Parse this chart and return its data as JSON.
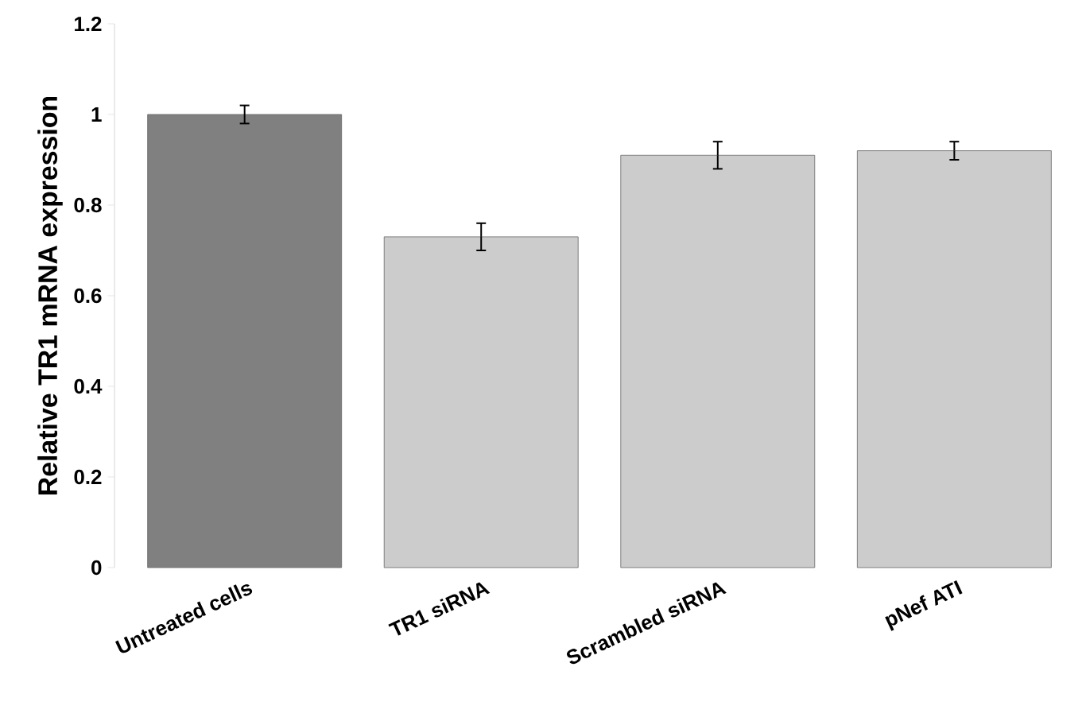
{
  "chart_data": {
    "type": "bar",
    "ylabel": "Relative TR1 mRNA expression",
    "categories": [
      "Untreated cells",
      "TR1 siRNA",
      "Scrambled siRNA",
      "pNef ATI"
    ],
    "values": [
      1.0,
      0.73,
      0.91,
      0.92
    ],
    "errors": [
      0.02,
      0.03,
      0.03,
      0.02
    ],
    "colors": [
      "#808080",
      "#cccccc",
      "#cccccc",
      "#cccccc"
    ],
    "ylim": [
      0,
      1.2
    ],
    "yticks": [
      0,
      0.2,
      0.4,
      0.6,
      0.8,
      1,
      1.2
    ],
    "grid": false
  }
}
